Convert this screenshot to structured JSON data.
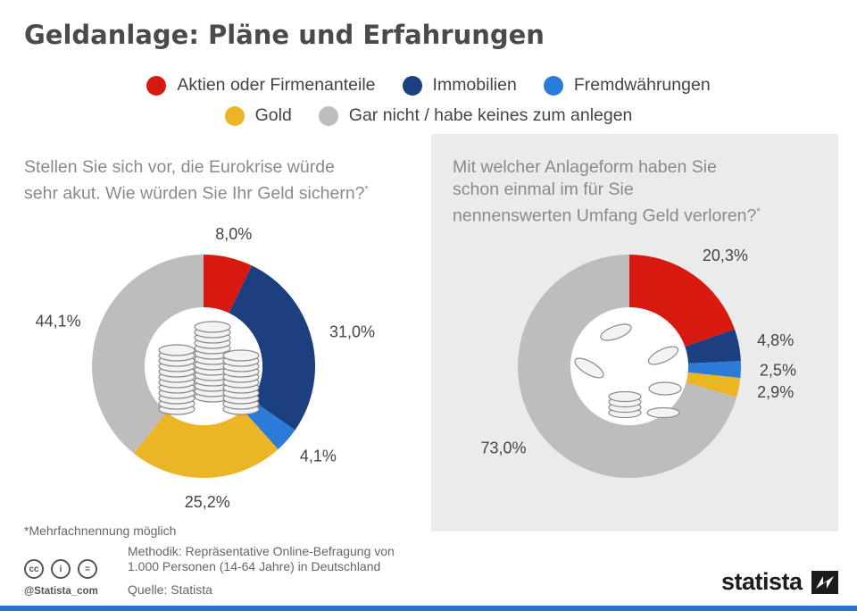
{
  "title": "Geldanlage: Pläne und Erfahrungen",
  "colors": {
    "aktien": "#d7190f",
    "immobilien": "#1c3f7f",
    "fremdwaehrungen": "#2b7bd8",
    "gold": "#ecb526",
    "garnicht": "#bdbdbd"
  },
  "legend": [
    {
      "label": "Aktien oder Firmenanteile",
      "color": "#d7190f"
    },
    {
      "label": "Immobilien",
      "color": "#1c3f7f"
    },
    {
      "label": "Fremdwährungen",
      "color": "#2b7bd8"
    },
    {
      "label": "Gold",
      "color": "#ecb526"
    },
    {
      "label": "Gar nicht / habe keines zum anlegen",
      "color": "#bdbdbd"
    }
  ],
  "left_question": {
    "line1": "Stellen Sie sich vor, die Eurokrise würde",
    "line2": "sehr akut. Wie würden Sie Ihr Geld sichern?",
    "star": "*"
  },
  "right_question": {
    "line1": "Mit welcher Anlageform haben Sie",
    "line2": "schon einmal im für Sie",
    "line3": "nennenswerten Umfang Geld verloren?",
    "star": "*"
  },
  "chart_data": [
    {
      "type": "pie",
      "title": "Stellen Sie sich vor, die Eurokrise würde sehr akut. Wie würden Sie Ihr Geld sichern?*",
      "categories": [
        "Aktien oder Firmenanteile",
        "Immobilien",
        "Fremdwährungen",
        "Gold",
        "Gar nicht / habe keines zum anlegen"
      ],
      "values": [
        8.0,
        31.0,
        4.1,
        25.2,
        44.1
      ],
      "labels": [
        "8,0%",
        "31,0%",
        "4,1%",
        "25,2%",
        "44,1%"
      ],
      "unit": "%"
    },
    {
      "type": "pie",
      "title": "Mit welcher Anlageform haben Sie schon einmal im für Sie nennenswerten Umfang Geld verloren?*",
      "categories": [
        "Aktien oder Firmenanteile",
        "Immobilien",
        "Fremdwährungen",
        "Gold",
        "Gar nicht / habe keines zum anlegen"
      ],
      "values": [
        20.3,
        4.8,
        2.5,
        2.9,
        73.0
      ],
      "labels": [
        "20,3%",
        "4,8%",
        "2,5%",
        "2,9%",
        "73,0%"
      ],
      "unit": "%"
    }
  ],
  "footer": {
    "footnote": "*Mehrfachnennung möglich",
    "method_line1": "Methodik: Repräsentative Online-Befragung von",
    "method_line2": "1.000 Personen (14-64 Jahre) in Deutschland",
    "source": "Quelle: Statista",
    "handle": "@Statista_com",
    "brand": "statista",
    "cc_icons": [
      "cc-icon",
      "by-icon",
      "nd-icon"
    ],
    "cc_glyphs": [
      "cc",
      "i",
      "="
    ]
  }
}
